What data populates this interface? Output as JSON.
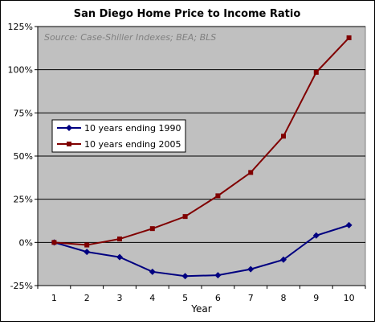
{
  "chart_data": {
    "type": "line",
    "title": "San Diego Home Price to Income Ratio",
    "annotation": "Source: Case-Shiller Indexes; BEA; BLS",
    "xlabel": "Year",
    "ylabel": "",
    "x": [
      1,
      2,
      3,
      4,
      5,
      6,
      7,
      8,
      9,
      10
    ],
    "ylim": [
      -25,
      125
    ],
    "yticks": [
      -25,
      0,
      25,
      50,
      75,
      100,
      125
    ],
    "ytick_labels": [
      "-25%",
      "0%",
      "25%",
      "50%",
      "75%",
      "100%",
      "125%"
    ],
    "grid": "horizontal",
    "legend_position": "left-center",
    "plot_background": "#c0c0c0",
    "series": [
      {
        "name": "10 years ending 1990",
        "color": "#000080",
        "marker": "diamond",
        "values": [
          0,
          -5.5,
          -8.5,
          -17,
          -19.5,
          -19,
          -15.5,
          -10,
          4,
          10
        ]
      },
      {
        "name": "10 years ending 2005",
        "color": "#800000",
        "marker": "square",
        "values": [
          0,
          -1.5,
          2,
          8,
          15,
          27,
          40.5,
          61.5,
          98.5,
          118.5
        ]
      }
    ]
  }
}
